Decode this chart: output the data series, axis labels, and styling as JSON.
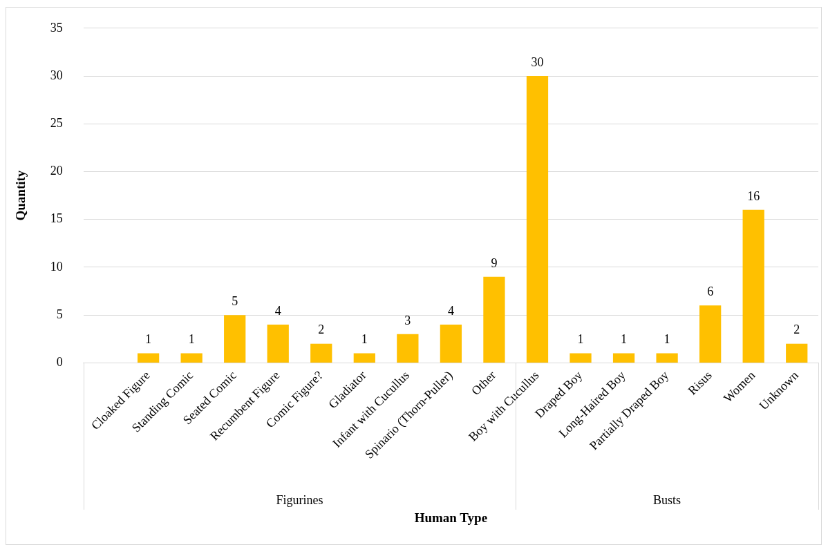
{
  "chart_data": {
    "type": "bar",
    "xlabel": "Human Type",
    "ylabel": "Quantity",
    "categories": [
      null,
      "Cloaked Figure",
      "Standing Comic",
      "Seated Comic",
      "Recumbent Figure",
      "Comic Figure?",
      "Gladiator",
      "Infant with Cucullus",
      "Spinario (Thorn-Puller)",
      "Other",
      "Boy with Cucullus",
      "Draped Boy",
      "Long-Haired Boy",
      "Partially Draped Boy",
      "Risus",
      "Women",
      "Unknown"
    ],
    "values": [
      null,
      1,
      1,
      5,
      4,
      2,
      1,
      3,
      4,
      9,
      30,
      1,
      1,
      1,
      6,
      16,
      2
    ],
    "color": "#ffc000",
    "ylim": [
      0,
      35
    ],
    "yticks": [
      0,
      5,
      10,
      15,
      20,
      25,
      30,
      35
    ],
    "grid": "y",
    "legend": false,
    "data_labels": true,
    "annotations": [
      "Figurines",
      "Busts"
    ]
  }
}
